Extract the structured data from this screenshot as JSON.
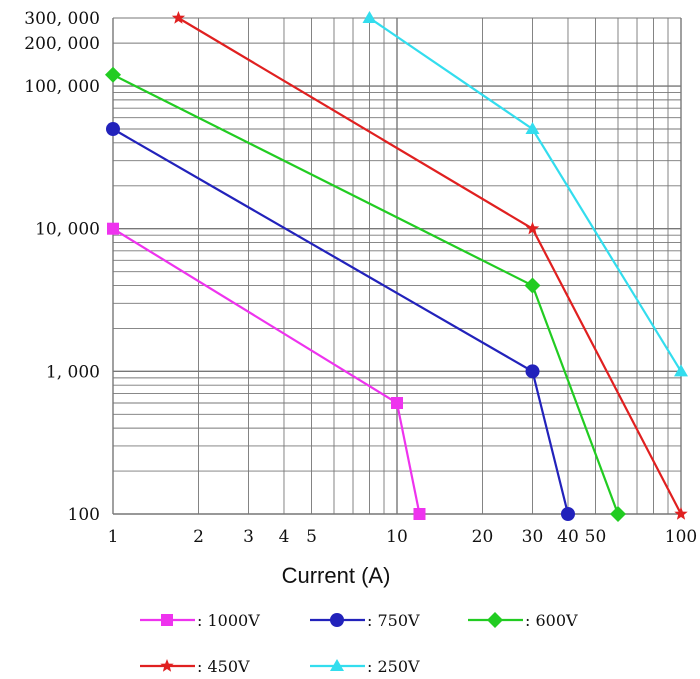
{
  "chart_data": {
    "type": "line",
    "title": "",
    "xlabel": "Current (A)",
    "ylabel": "",
    "x_scale": "log",
    "y_scale": "log",
    "xlim": [
      1,
      100
    ],
    "ylim": [
      100,
      300000
    ],
    "grid": true,
    "legend_position": "bottom",
    "x_ticks": [
      {
        "value": 1,
        "label": "1"
      },
      {
        "value": 2,
        "label": "2"
      },
      {
        "value": 3,
        "label": "3"
      },
      {
        "value": 4,
        "label": "4"
      },
      {
        "value": 5,
        "label": "5"
      },
      {
        "value": 10,
        "label": "10"
      },
      {
        "value": 20,
        "label": "20"
      },
      {
        "value": 30,
        "label": "30"
      },
      {
        "value": 40,
        "label": "40"
      },
      {
        "value": 50,
        "label": "50"
      },
      {
        "value": 100,
        "label": "100"
      }
    ],
    "y_ticks": [
      {
        "value": 100,
        "label": "100"
      },
      {
        "value": 1000,
        "label": "1, 000"
      },
      {
        "value": 10000,
        "label": "10, 000"
      },
      {
        "value": 100000,
        "label": "100, 000"
      },
      {
        "value": 200000,
        "label": "200, 000"
      },
      {
        "value": 300000,
        "label": "300, 000"
      }
    ],
    "series": [
      {
        "name": ": 1000V",
        "color": "#ee33ee",
        "marker": "square",
        "x": [
          1,
          10,
          12
        ],
        "y": [
          10000,
          600,
          100
        ]
      },
      {
        "name": ": 750V",
        "color": "#2222bb",
        "marker": "circle",
        "x": [
          1,
          30,
          40
        ],
        "y": [
          50000,
          1000,
          100
        ]
      },
      {
        "name": ": 600V",
        "color": "#22cc22",
        "marker": "diamond",
        "x": [
          1,
          30,
          60
        ],
        "y": [
          120000,
          4000,
          100
        ]
      },
      {
        "name": ": 450V",
        "color": "#e02020",
        "marker": "star",
        "x": [
          1.7,
          30,
          100
        ],
        "y": [
          300000,
          10000,
          100
        ]
      },
      {
        "name": ": 250V",
        "color": "#33ddee",
        "marker": "triangle",
        "x": [
          8,
          30,
          100
        ],
        "y": [
          300000,
          50000,
          1000
        ]
      }
    ]
  }
}
